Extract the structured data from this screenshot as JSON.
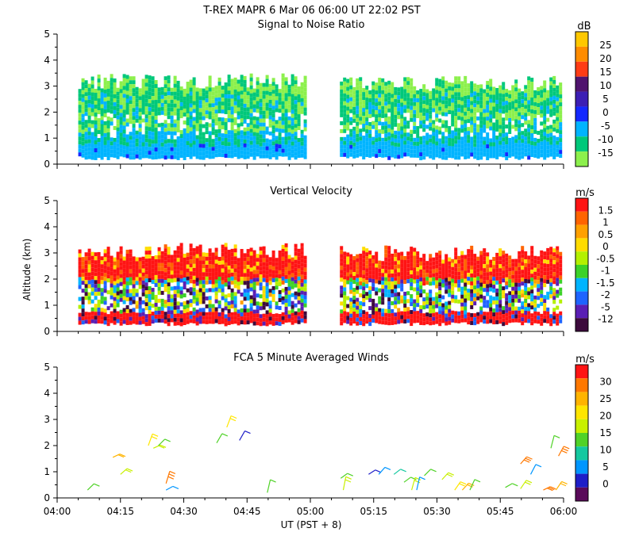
{
  "header": {
    "line1": "T-REX   MAPR   6 Mar 06   06:00 UT   22:02   PST"
  },
  "chart_data": [
    {
      "type": "heatmap",
      "title": "Signal to Noise Ratio",
      "ylim": [
        0,
        5
      ],
      "yticks": [
        "0",
        "1",
        "2",
        "3",
        "4",
        "5"
      ],
      "x_start": "04:00",
      "x_end": "06:00",
      "colorbar": {
        "unit": "dB",
        "labels": [
          "25",
          "20",
          "15",
          "10",
          "5",
          "0",
          "-5",
          "-10",
          "-15"
        ],
        "colors": [
          "#ffc800",
          "#ff8c00",
          "#ff3c14",
          "#50146e",
          "#3c1eb4",
          "#1428ff",
          "#00b4ff",
          "#00c87a",
          "#8cf04c"
        ]
      },
      "segments": [
        {
          "from": "04:05",
          "to": "04:59",
          "top_km": 3.1,
          "base_km": 0.3
        },
        {
          "from": "05:07",
          "to": "05:59",
          "top_km": 3.0,
          "base_km": 0.3
        }
      ]
    },
    {
      "type": "heatmap",
      "title": "Vertical Velocity",
      "ylabel": "Altitude (km)",
      "ylim": [
        0,
        5
      ],
      "yticks": [
        "0",
        "1",
        "2",
        "3",
        "4",
        "5"
      ],
      "colorbar": {
        "unit": "m/s",
        "labels": [
          "1.5",
          "1",
          "0.5",
          "0",
          "-0.5",
          "-1",
          "-1.5",
          "-2",
          "-5",
          "-12"
        ],
        "colors": [
          "#ff1414",
          "#ff6400",
          "#ffa000",
          "#ffdc00",
          "#b4f000",
          "#3cd228",
          "#00b4ff",
          "#1e64ff",
          "#5a1eb4",
          "#3c0a3c"
        ]
      },
      "segments": [
        {
          "from": "04:05",
          "to": "04:59",
          "top_km": 3.0,
          "base_km": 0.35
        },
        {
          "from": "05:07",
          "to": "05:59",
          "top_km": 2.9,
          "base_km": 0.35
        }
      ]
    },
    {
      "type": "scatter",
      "title": "FCA 5 Minute Averaged Winds",
      "xlabel": "UT  (PST + 8)",
      "ylim": [
        0,
        5
      ],
      "yticks": [
        "0",
        "1",
        "2",
        "3",
        "4",
        "5"
      ],
      "xticks": [
        "04:00",
        "04:15",
        "04:30",
        "04:45",
        "05:00",
        "05:15",
        "05:30",
        "05:45",
        "06:00"
      ],
      "colorbar": {
        "unit": "m/s",
        "labels": [
          "30",
          "25",
          "20",
          "15",
          "10",
          "5",
          "0"
        ],
        "colors": [
          "#ff1414",
          "#ff7800",
          "#ffb400",
          "#ffe600",
          "#c8f000",
          "#50d228",
          "#14c8a0",
          "#0096ff",
          "#1e1ec8",
          "#5a0a5a"
        ]
      },
      "barbs": [
        {
          "t": 4.12,
          "z": 0.3,
          "s": 14
        },
        {
          "t": 4.22,
          "z": 1.55,
          "s": 22
        },
        {
          "t": 4.25,
          "z": 0.9,
          "s": 16
        },
        {
          "t": 4.36,
          "z": 2.0,
          "s": 20
        },
        {
          "t": 4.38,
          "z": 1.9,
          "s": 18
        },
        {
          "t": 4.4,
          "z": 2.0,
          "s": 14
        },
        {
          "t": 4.43,
          "z": 0.55,
          "s": 26
        },
        {
          "t": 4.43,
          "z": 0.3,
          "s": 8
        },
        {
          "t": 4.63,
          "z": 2.1,
          "s": 12
        },
        {
          "t": 4.67,
          "z": 2.7,
          "s": 20
        },
        {
          "t": 4.72,
          "z": 2.2,
          "s": 4
        },
        {
          "t": 4.83,
          "z": 0.2,
          "s": 14
        },
        {
          "t": 5.12,
          "z": 0.75,
          "s": 12
        },
        {
          "t": 5.13,
          "z": 0.3,
          "s": 16
        },
        {
          "t": 5.23,
          "z": 0.9,
          "s": 2
        },
        {
          "t": 5.27,
          "z": 0.9,
          "s": 8
        },
        {
          "t": 5.33,
          "z": 0.9,
          "s": 10
        },
        {
          "t": 5.37,
          "z": 0.6,
          "s": 12
        },
        {
          "t": 5.4,
          "z": 0.3,
          "s": 16
        },
        {
          "t": 5.42,
          "z": 0.3,
          "s": 6
        },
        {
          "t": 5.45,
          "z": 0.85,
          "s": 14
        },
        {
          "t": 5.52,
          "z": 0.7,
          "s": 18
        },
        {
          "t": 5.57,
          "z": 0.3,
          "s": 20
        },
        {
          "t": 5.6,
          "z": 0.3,
          "s": 24
        },
        {
          "t": 5.63,
          "z": 0.3,
          "s": 12
        },
        {
          "t": 5.77,
          "z": 0.4,
          "s": 14
        },
        {
          "t": 5.83,
          "z": 1.3,
          "s": 26
        },
        {
          "t": 5.83,
          "z": 0.35,
          "s": 18
        },
        {
          "t": 5.87,
          "z": 0.9,
          "s": 6
        },
        {
          "t": 5.92,
          "z": 0.3,
          "s": 28
        },
        {
          "t": 5.95,
          "z": 1.9,
          "s": 14
        },
        {
          "t": 5.98,
          "z": 1.6,
          "s": 26
        },
        {
          "t": 5.97,
          "z": 0.3,
          "s": 22
        }
      ]
    }
  ]
}
